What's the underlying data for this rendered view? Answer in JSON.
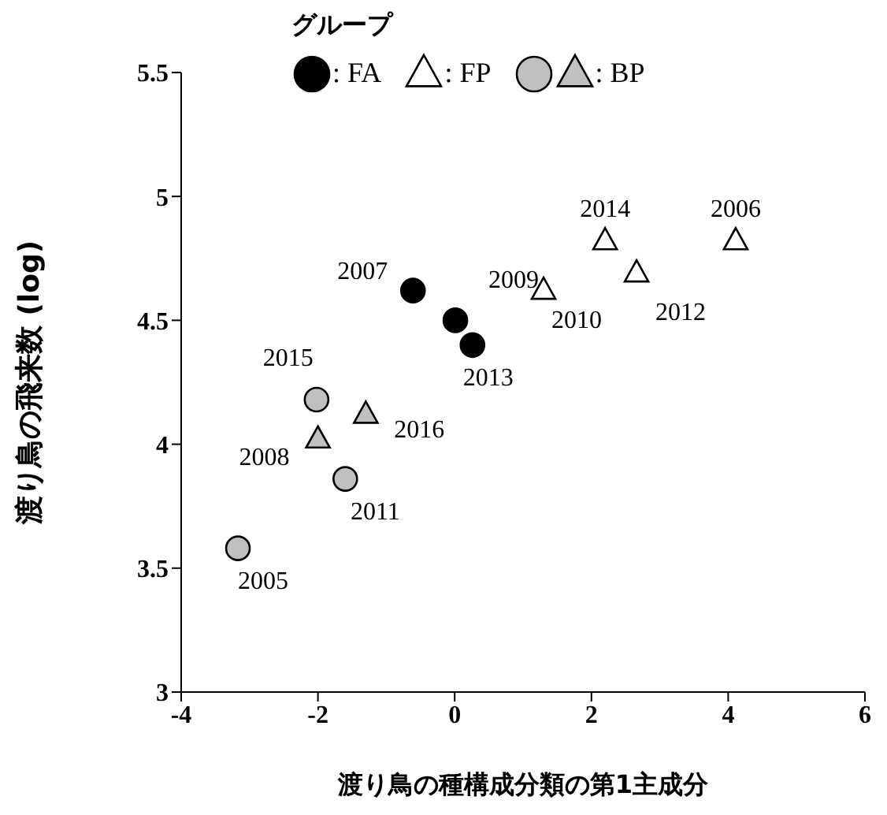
{
  "chart_data": {
    "type": "scatter",
    "xlabel": "渡り鳥の種構成分類の第1主成分",
    "ylabel": "渡り鳥の飛来数 (log)",
    "legend_title": "グループ",
    "legend": "top",
    "grid": false,
    "xlim": [
      -4,
      6
    ],
    "xticks": [
      -4,
      -2,
      0,
      2,
      4,
      6
    ],
    "ylim": [
      3,
      5.5
    ],
    "yticks": [
      3,
      3.5,
      4,
      4.5,
      5,
      5.5
    ],
    "series": [
      {
        "name": ": FA",
        "color": "#000000",
        "marker": "circle",
        "x": [
          -0.61,
          0.01,
          0.26
        ],
        "values": [
          4.62,
          4.5,
          4.4
        ]
      },
      {
        "name": ": FP",
        "color": "#ffffff",
        "marker": "triangle",
        "x": [
          1.3,
          2.2,
          2.66,
          4.11
        ],
        "values": [
          4.62,
          4.82,
          4.69,
          4.82
        ]
      },
      {
        "color": "#c0c0c0",
        "marker": "circle",
        "x": [
          -2.02,
          -1.6,
          -3.17
        ],
        "values": [
          4.18,
          3.86,
          3.58
        ]
      },
      {
        "name": ": BP",
        "color": "#c0c0c0",
        "marker": "triangle",
        "x": [
          -2.0,
          -1.3
        ],
        "values": [
          4.02,
          4.12
        ]
      }
    ],
    "annotations": [
      {
        "text": "2007",
        "x": -0.61,
        "y": 4.62
      },
      {
        "text": "2009",
        "x": 0.01,
        "y": 4.5
      },
      {
        "text": "2013",
        "x": 0.26,
        "y": 4.4
      },
      {
        "text": "2010",
        "x": 1.3,
        "y": 4.62
      },
      {
        "text": "2014",
        "x": 2.2,
        "y": 4.82
      },
      {
        "text": "2012",
        "x": 2.66,
        "y": 4.69
      },
      {
        "text": "2006",
        "x": 4.11,
        "y": 4.82
      },
      {
        "text": "2015",
        "x": -2.02,
        "y": 4.18
      },
      {
        "text": "2011",
        "x": -1.6,
        "y": 3.86
      },
      {
        "text": "2005",
        "x": -3.17,
        "y": 3.58
      },
      {
        "text": "2008",
        "x": -2.0,
        "y": 4.02
      },
      {
        "text": "2016",
        "x": -1.3,
        "y": 4.12
      }
    ]
  }
}
